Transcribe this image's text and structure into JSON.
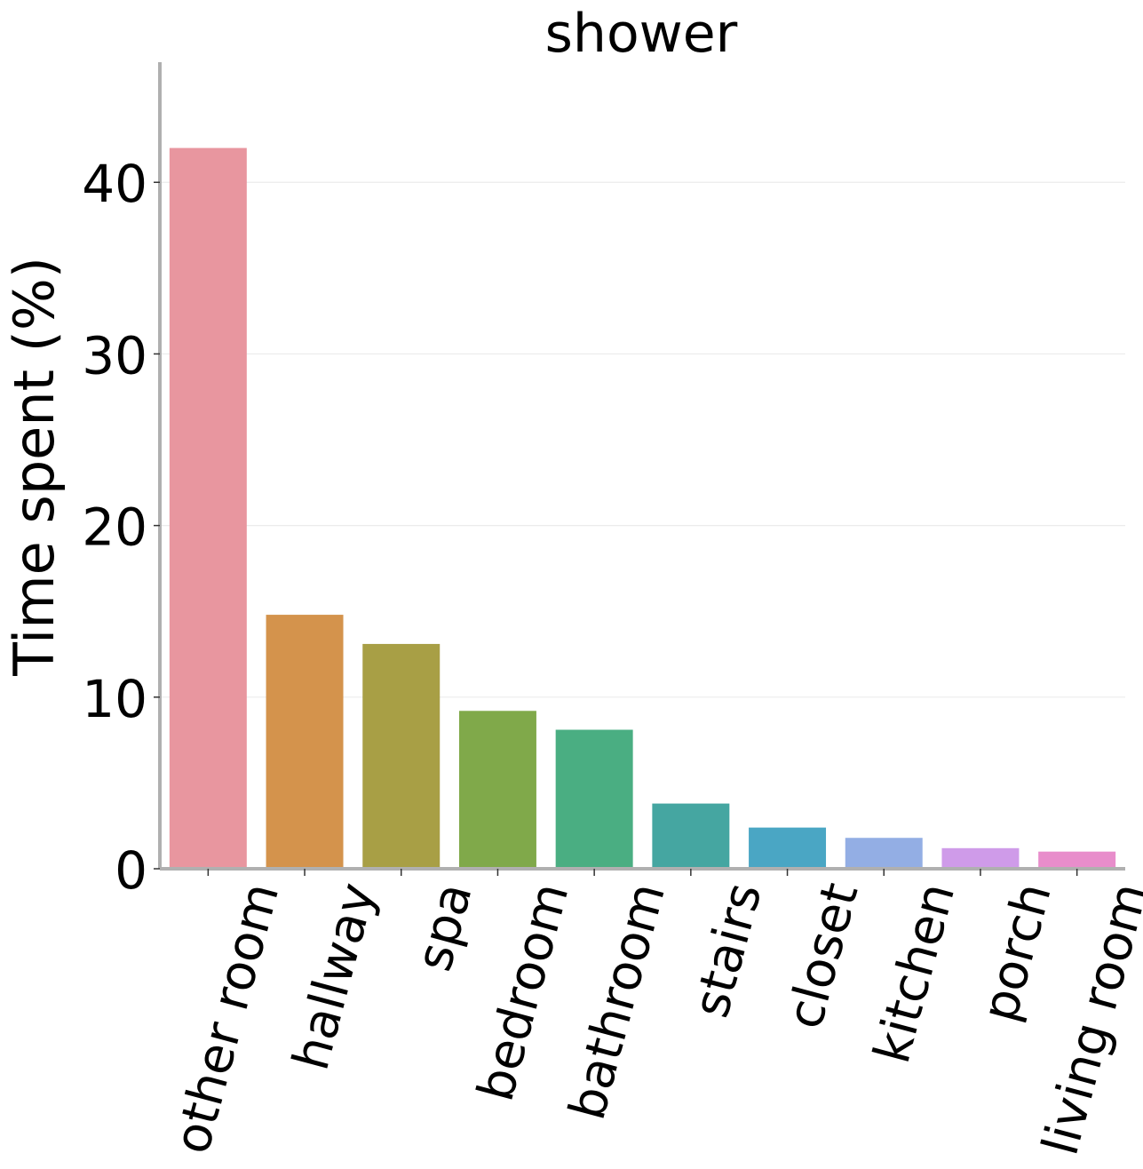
{
  "chart_data": {
    "type": "bar",
    "title": "shower",
    "xlabel": "",
    "ylabel": "Time spent (%)",
    "categories": [
      "other room",
      "hallway",
      "spa",
      "bedroom",
      "bathroom",
      "stairs",
      "closet",
      "kitchen",
      "porch",
      "living room"
    ],
    "values": [
      42.0,
      14.8,
      13.1,
      9.2,
      8.1,
      3.8,
      2.4,
      1.8,
      1.2,
      1.0
    ],
    "ylim": [
      0,
      47
    ],
    "yticks": [
      0,
      10,
      20,
      30,
      40
    ],
    "grid": "horizontal",
    "colors": [
      "#e8969f",
      "#d4934c",
      "#a89f45",
      "#80a94a",
      "#4aae82",
      "#45a6a1",
      "#4aa6c4",
      "#93aee4",
      "#cf9be9",
      "#e88dcb"
    ]
  }
}
